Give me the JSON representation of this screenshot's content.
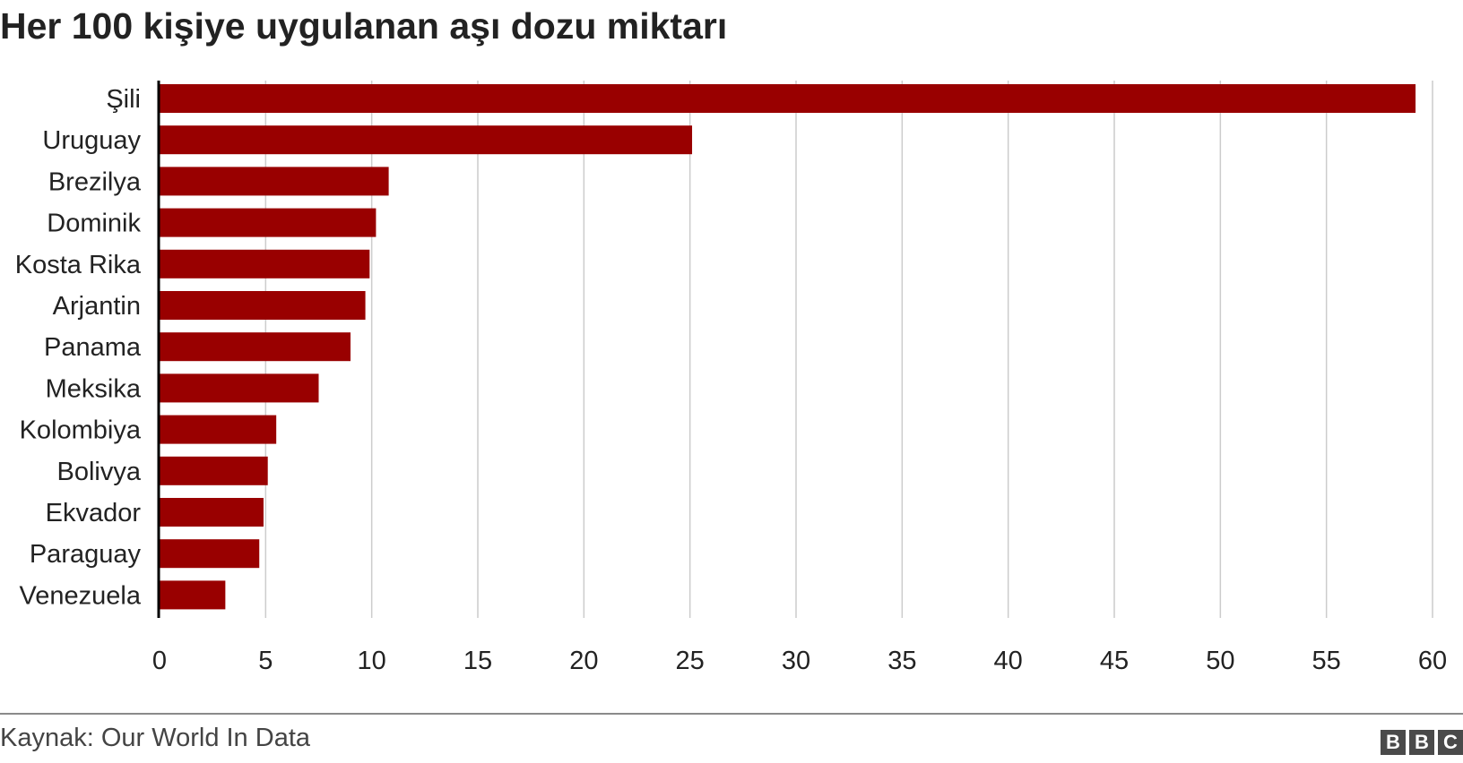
{
  "title": "Her 100 kişiye uygulanan aşı dozu miktarı",
  "source": "Kaynak: Our World In Data",
  "logo": {
    "letters": [
      "B",
      "B",
      "C"
    ]
  },
  "colors": {
    "bar": "#990000",
    "grid": "#cccccc",
    "axis": "#000000"
  },
  "chart_data": {
    "type": "bar",
    "orientation": "horizontal",
    "categories": [
      "Şili",
      "Uruguay",
      "Brezilya",
      "Dominik",
      "Kosta Rika",
      "Arjantin",
      "Panama",
      "Meksika",
      "Kolombiya",
      "Bolivya",
      "Ekvador",
      "Paraguay",
      "Venezuela"
    ],
    "values": [
      59.2,
      25.1,
      10.8,
      10.2,
      9.9,
      9.7,
      9.0,
      7.5,
      5.5,
      5.1,
      4.9,
      4.7,
      3.1
    ],
    "xlim": [
      0,
      60
    ],
    "xticks": [
      "0",
      "5",
      "10",
      "15",
      "20",
      "25",
      "30",
      "35",
      "40",
      "45",
      "50",
      "55",
      "60"
    ],
    "grid": "vertical",
    "legend": "none"
  }
}
